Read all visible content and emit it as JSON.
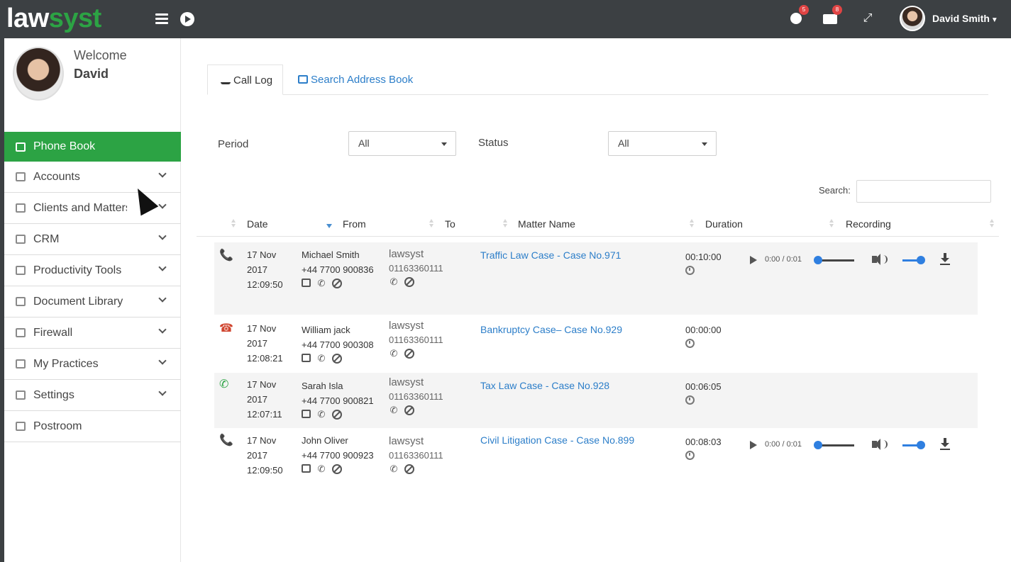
{
  "app": {
    "logo_part1": "law",
    "logo_part2": "syst",
    "notifications_count": "5",
    "messages_count": "8",
    "user_name": "David Smith",
    "accent_color": "#2ca344",
    "link_color": "#2c7ec9"
  },
  "sidebar": {
    "welcome": "Welcome",
    "name": "David",
    "items": [
      {
        "label": "Phone Book",
        "icon": "edit-icon",
        "active": true
      },
      {
        "label": "Accounts",
        "icon": "calculator-icon"
      },
      {
        "label": "Clients and Matters",
        "icon": "home-icon"
      },
      {
        "label": "CRM",
        "icon": "window-icon"
      },
      {
        "label": "Productivity Tools",
        "icon": "document-icon"
      },
      {
        "label": "Document Library",
        "icon": "folder-icon"
      },
      {
        "label": "Firewall",
        "icon": "edit-icon"
      },
      {
        "label": "My Practices",
        "icon": "id-card-icon"
      },
      {
        "label": "Settings",
        "icon": "send-icon"
      },
      {
        "label": "Postroom",
        "icon": "envelope-icon"
      }
    ]
  },
  "tabs": {
    "call_log": "Call Log",
    "search_address_book": "Search Address Book"
  },
  "filters": {
    "period_label": "Period",
    "period_value": "All",
    "status_label": "Status",
    "status_value": "All",
    "search_label": "Search:",
    "search_value": ""
  },
  "table": {
    "headers": {
      "date": "Date",
      "from": "From",
      "to": "To",
      "matter": "Matter Name",
      "duration": "Duration",
      "recording": "Recording"
    },
    "rows": [
      {
        "status": "incoming",
        "date1": "17 Nov",
        "date2": "2017",
        "time": "12:09:50",
        "from_name": "Michael Smith",
        "from_phone": "+44 7700 900836",
        "to_name": "lawsyst",
        "to_phone": "01163360111",
        "matter": "Traffic Law Case - Case No.971",
        "duration": "00:10:00",
        "player_time": "0:00 / 0:01"
      },
      {
        "status": "missed",
        "date1": "17 Nov",
        "date2": "2017",
        "time": "12:08:21",
        "from_name": "William jack",
        "from_phone": "+44 7700 900308",
        "to_name": "lawsyst",
        "to_phone": "01163360111",
        "matter": "Bankruptcy Case– Case No.929",
        "duration": "00:00:00"
      },
      {
        "status": "outgoing",
        "date1": "17 Nov",
        "date2": "2017",
        "time": "12:07:11",
        "from_name": "Sarah Isla",
        "from_phone": "+44 7700 900821",
        "to_name": "lawsyst",
        "to_phone": "01163360111",
        "matter": "Tax Law Case - Case No.928",
        "duration": "00:06:05"
      },
      {
        "status": "incoming",
        "date1": "17 Nov",
        "date2": "2017",
        "time": "12:09:50",
        "from_name": "John Oliver",
        "from_phone": "+44 7700 900923",
        "to_name": "lawsyst",
        "to_phone": "01163360111",
        "matter": "Civil Litigation Case - Case No.899",
        "duration": "00:08:03",
        "player_time": "0:00 / 0:01"
      }
    ]
  }
}
